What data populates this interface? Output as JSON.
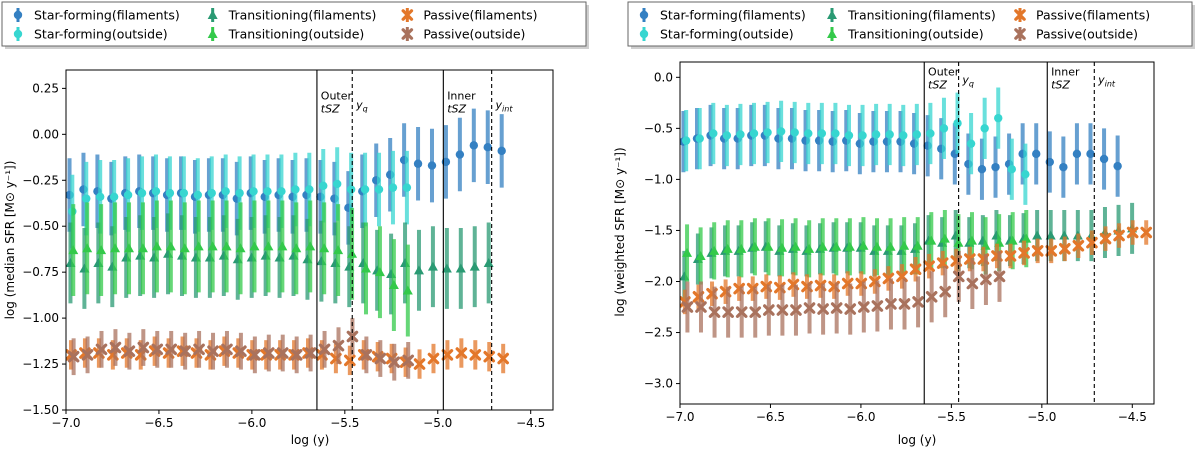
{
  "colors": {
    "sf_fil": "#3480c2",
    "sf_out": "#37d6d0",
    "tr_fil": "#2a9a73",
    "tr_out": "#33c94a",
    "pa_fil": "#e3772a",
    "pa_out": "#a9725d"
  },
  "chart_data": [
    {
      "type": "scatter",
      "name": "median",
      "xlabel": "log (y)",
      "ylabel": "log (median SFR [M⊙ y⁻¹])",
      "xlim": [
        -7.0,
        -4.38
      ],
      "ylim": [
        -1.5,
        0.35
      ],
      "xticks": [
        -7.0,
        -6.5,
        -6.0,
        -5.5,
        -5.0,
        -4.5
      ],
      "yticks": [
        -1.5,
        -1.25,
        -1.0,
        -0.75,
        -0.5,
        -0.25,
        0.0,
        0.25
      ],
      "xtick_labels": [
        "−7.0",
        "−6.5",
        "−6.0",
        "−5.5",
        "−5.0",
        "−4.5"
      ],
      "ytick_labels": [
        "−1.50",
        "−1.25",
        "−1.00",
        "−0.75",
        "−0.50",
        "−0.25",
        "0.00",
        "0.25"
      ],
      "lines": [
        {
          "x": -5.65,
          "style": "solid"
        },
        {
          "x": -5.46,
          "style": "dashed"
        },
        {
          "x": -4.97,
          "style": "solid"
        },
        {
          "x": -4.71,
          "style": "dashed"
        }
      ],
      "annotations": [
        {
          "text": "Outer",
          "x": -5.64,
          "y": 0.19,
          "italic": false
        },
        {
          "text": "tSZ",
          "x": -5.64,
          "y": 0.12,
          "italic": true
        },
        {
          "text": "yq",
          "x": -5.45,
          "y": 0.14,
          "italic": true
        },
        {
          "text": "Inner",
          "x": -4.96,
          "y": 0.19,
          "italic": false
        },
        {
          "text": "tSZ",
          "x": -4.96,
          "y": 0.12,
          "italic": true
        },
        {
          "text": "yint",
          "x": -4.7,
          "y": 0.14,
          "italic": true
        }
      ],
      "legend": {
        "position": "top-left",
        "entries": [
          {
            "label": "Star-forming(filaments)",
            "key": "sf_fil",
            "marker": "circle"
          },
          {
            "label": "Star-forming(outside)",
            "key": "sf_out",
            "marker": "circle"
          },
          {
            "label": "Transitioning(filaments)",
            "key": "tr_fil",
            "marker": "triangle"
          },
          {
            "label": "Transitioning(outside)",
            "key": "tr_out",
            "marker": "triangle"
          },
          {
            "label": "Passive(filaments)",
            "key": "pa_fil",
            "marker": "x"
          },
          {
            "label": "Passive(outside)",
            "key": "pa_out",
            "marker": "x"
          }
        ]
      },
      "series": [
        {
          "key": "sf_fil",
          "marker": "circle",
          "x0": -6.97,
          "dx": 0.075,
          "err": 0.2,
          "values": [
            -0.33,
            -0.3,
            -0.31,
            -0.35,
            -0.32,
            -0.31,
            -0.32,
            -0.33,
            -0.32,
            -0.34,
            -0.33,
            -0.33,
            -0.35,
            -0.32,
            -0.34,
            -0.33,
            -0.34,
            -0.33,
            -0.34,
            -0.35,
            -0.4,
            -0.31,
            -0.25,
            -0.22,
            -0.14,
            -0.16,
            -0.17,
            -0.15,
            -0.11,
            -0.06,
            -0.07,
            -0.09
          ]
        },
        {
          "key": "sf_out",
          "marker": "circle",
          "x0": -6.97,
          "dx": 0.075,
          "err": 0.2,
          "values": [
            -0.42,
            -0.35,
            -0.34,
            -0.34,
            -0.33,
            -0.32,
            -0.31,
            -0.32,
            -0.32,
            -0.33,
            -0.32,
            -0.31,
            -0.32,
            -0.31,
            -0.31,
            -0.31,
            -0.3,
            -0.3,
            -0.28,
            -0.27,
            -0.3,
            -0.3,
            -0.3,
            -0.29,
            -0.29
          ]
        },
        {
          "key": "tr_fil",
          "marker": "triangle",
          "x0": -6.97,
          "dx": 0.075,
          "err": 0.22,
          "values": [
            -0.7,
            -0.73,
            -0.7,
            -0.72,
            -0.67,
            -0.66,
            -0.67,
            -0.65,
            -0.66,
            -0.67,
            -0.67,
            -0.66,
            -0.68,
            -0.67,
            -0.66,
            -0.67,
            -0.66,
            -0.68,
            -0.69,
            -0.7,
            -0.72,
            -0.7,
            -0.74,
            -0.76,
            -0.7,
            -0.74,
            -0.72,
            -0.73,
            -0.73,
            -0.72,
            -0.7
          ]
        },
        {
          "key": "tr_out",
          "marker": "triangle",
          "x0": -6.97,
          "dx": 0.075,
          "err": 0.25,
          "values": [
            -0.63,
            -0.62,
            -0.63,
            -0.62,
            -0.62,
            -0.62,
            -0.61,
            -0.61,
            -0.62,
            -0.61,
            -0.61,
            -0.61,
            -0.62,
            -0.61,
            -0.61,
            -0.61,
            -0.62,
            -0.61,
            -0.62,
            -0.63,
            -0.65,
            -0.73,
            -0.75,
            -0.82,
            -0.85
          ]
        },
        {
          "key": "pa_fil",
          "marker": "x",
          "x0": -6.97,
          "dx": 0.075,
          "err": 0.08,
          "values": [
            -1.2,
            -1.19,
            -1.19,
            -1.2,
            -1.19,
            -1.2,
            -1.18,
            -1.19,
            -1.18,
            -1.19,
            -1.2,
            -1.18,
            -1.19,
            -1.2,
            -1.2,
            -1.2,
            -1.2,
            -1.19,
            -1.2,
            -1.22,
            -1.23,
            -1.2,
            -1.21,
            -1.22,
            -1.24,
            -1.25,
            -1.22,
            -1.2,
            -1.19,
            -1.2,
            -1.21,
            -1.22
          ]
        },
        {
          "key": "pa_out",
          "marker": "x",
          "x0": -6.97,
          "dx": 0.075,
          "err": 0.1,
          "values": [
            -1.21,
            -1.2,
            -1.17,
            -1.16,
            -1.18,
            -1.16,
            -1.17,
            -1.17,
            -1.18,
            -1.17,
            -1.18,
            -1.17,
            -1.18,
            -1.2,
            -1.19,
            -1.19,
            -1.2,
            -1.19,
            -1.17,
            -1.15,
            -1.1,
            -1.2,
            -1.22,
            -1.24,
            -1.23
          ]
        }
      ]
    },
    {
      "type": "scatter",
      "name": "weighted",
      "xlabel": "log (y)",
      "ylabel": "log (weighted SFR [M⊙ y⁻¹])",
      "xlim": [
        -7.0,
        -4.38
      ],
      "ylim": [
        -3.2,
        0.15
      ],
      "xticks": [
        -7.0,
        -6.5,
        -6.0,
        -5.5,
        -5.0,
        -4.5
      ],
      "yticks": [
        -3.0,
        -2.5,
        -2.0,
        -1.5,
        -1.0,
        -0.5,
        0.0
      ],
      "xtick_labels": [
        "−7.0",
        "−6.5",
        "−6.0",
        "−5.5",
        "−5.0",
        "−4.5"
      ],
      "ytick_labels": [
        "−3.0",
        "−2.5",
        "−2.0",
        "−1.5",
        "−1.0",
        "−0.5",
        "0.0"
      ],
      "lines": [
        {
          "x": -5.65,
          "style": "solid"
        },
        {
          "x": -5.46,
          "style": "dashed"
        },
        {
          "x": -4.97,
          "style": "solid"
        },
        {
          "x": -4.71,
          "style": "dashed"
        }
      ],
      "annotations": [
        {
          "text": "Outer",
          "x": -5.64,
          "y": 0.02,
          "italic": false
        },
        {
          "text": "tSZ",
          "x": -5.64,
          "y": -0.11,
          "italic": true
        },
        {
          "text": "yq",
          "x": -5.45,
          "y": -0.06,
          "italic": true
        },
        {
          "text": "Inner",
          "x": -4.96,
          "y": 0.02,
          "italic": false
        },
        {
          "text": "tSZ",
          "x": -4.96,
          "y": -0.11,
          "italic": true
        },
        {
          "text": "yint",
          "x": -4.7,
          "y": -0.06,
          "italic": true
        }
      ],
      "legend": {
        "position": "top-left",
        "entries": [
          {
            "label": "Star-forming(filaments)",
            "key": "sf_fil",
            "marker": "circle"
          },
          {
            "label": "Star-forming(outside)",
            "key": "sf_out",
            "marker": "circle"
          },
          {
            "label": "Transitioning(filaments)",
            "key": "tr_fil",
            "marker": "triangle"
          },
          {
            "label": "Transitioning(outside)",
            "key": "tr_out",
            "marker": "triangle"
          },
          {
            "label": "Passive(filaments)",
            "key": "pa_fil",
            "marker": "x"
          },
          {
            "label": "Passive(outside)",
            "key": "pa_out",
            "marker": "x"
          }
        ]
      },
      "series": [
        {
          "key": "sf_fil",
          "marker": "circle",
          "x0": -6.97,
          "dx": 0.075,
          "err": 0.3,
          "values": [
            -0.63,
            -0.6,
            -0.57,
            -0.6,
            -0.6,
            -0.57,
            -0.57,
            -0.6,
            -0.6,
            -0.62,
            -0.62,
            -0.63,
            -0.62,
            -0.65,
            -0.63,
            -0.63,
            -0.63,
            -0.65,
            -0.67,
            -0.7,
            -0.75,
            -0.85,
            -0.9,
            -0.88,
            -0.85,
            -0.75,
            -0.75,
            -0.83,
            -0.88,
            -0.75,
            -0.75,
            -0.8,
            -0.87
          ]
        },
        {
          "key": "sf_out",
          "marker": "circle",
          "x0": -6.97,
          "dx": 0.075,
          "err": 0.3,
          "values": [
            -0.62,
            -0.6,
            -0.55,
            -0.57,
            -0.56,
            -0.55,
            -0.54,
            -0.53,
            -0.54,
            -0.55,
            -0.55,
            -0.55,
            -0.57,
            -0.57,
            -0.56,
            -0.56,
            -0.57,
            -0.56,
            -0.55,
            -0.5,
            -0.45,
            -0.65,
            -0.5,
            -0.4,
            -0.9,
            -0.95
          ]
        },
        {
          "key": "tr_fil",
          "marker": "triangle",
          "x0": -6.97,
          "dx": 0.075,
          "err": 0.25,
          "values": [
            -1.95,
            -1.78,
            -1.72,
            -1.7,
            -1.7,
            -1.67,
            -1.66,
            -1.7,
            -1.68,
            -1.7,
            -1.68,
            -1.67,
            -1.67,
            -1.67,
            -1.7,
            -1.7,
            -1.7,
            -1.68,
            -1.6,
            -1.62,
            -1.55,
            -1.62,
            -1.6,
            -1.55,
            -1.6,
            -1.58,
            -1.55,
            -1.55,
            -1.55,
            -1.55,
            -1.55,
            -1.52,
            -1.5,
            -1.48
          ]
        },
        {
          "key": "tr_out",
          "marker": "triangle",
          "x0": -6.97,
          "dx": 0.075,
          "err": 0.28,
          "values": [
            -1.72,
            -1.75,
            -1.7,
            -1.68,
            -1.68,
            -1.66,
            -1.66,
            -1.67,
            -1.66,
            -1.68,
            -1.66,
            -1.66,
            -1.66,
            -1.65,
            -1.66,
            -1.66,
            -1.65,
            -1.65,
            -1.6,
            -1.58,
            -1.62,
            -1.6,
            -1.65,
            -1.62,
            -1.6,
            -1.58
          ]
        },
        {
          "key": "pa_fil",
          "marker": "x",
          "x0": -6.97,
          "dx": 0.075,
          "err": 0.12,
          "values": [
            -2.2,
            -2.15,
            -2.12,
            -2.1,
            -2.07,
            -2.07,
            -2.05,
            -2.06,
            -2.03,
            -2.05,
            -2.04,
            -2.05,
            -2.02,
            -2.02,
            -2.0,
            -1.97,
            -1.95,
            -1.88,
            -1.85,
            -1.82,
            -1.8,
            -1.78,
            -1.78,
            -1.75,
            -1.75,
            -1.72,
            -1.7,
            -1.7,
            -1.68,
            -1.65,
            -1.62,
            -1.58,
            -1.55,
            -1.52,
            -1.52
          ]
        },
        {
          "key": "pa_out",
          "marker": "x",
          "x0": -6.97,
          "dx": 0.075,
          "err": 0.25,
          "values": [
            -2.25,
            -2.25,
            -2.3,
            -2.3,
            -2.3,
            -2.3,
            -2.28,
            -2.28,
            -2.28,
            -2.26,
            -2.27,
            -2.26,
            -2.27,
            -2.25,
            -2.24,
            -2.22,
            -2.22,
            -2.2,
            -2.15,
            -2.1,
            -1.95,
            -2.02,
            -1.98,
            -1.95
          ]
        }
      ]
    }
  ]
}
